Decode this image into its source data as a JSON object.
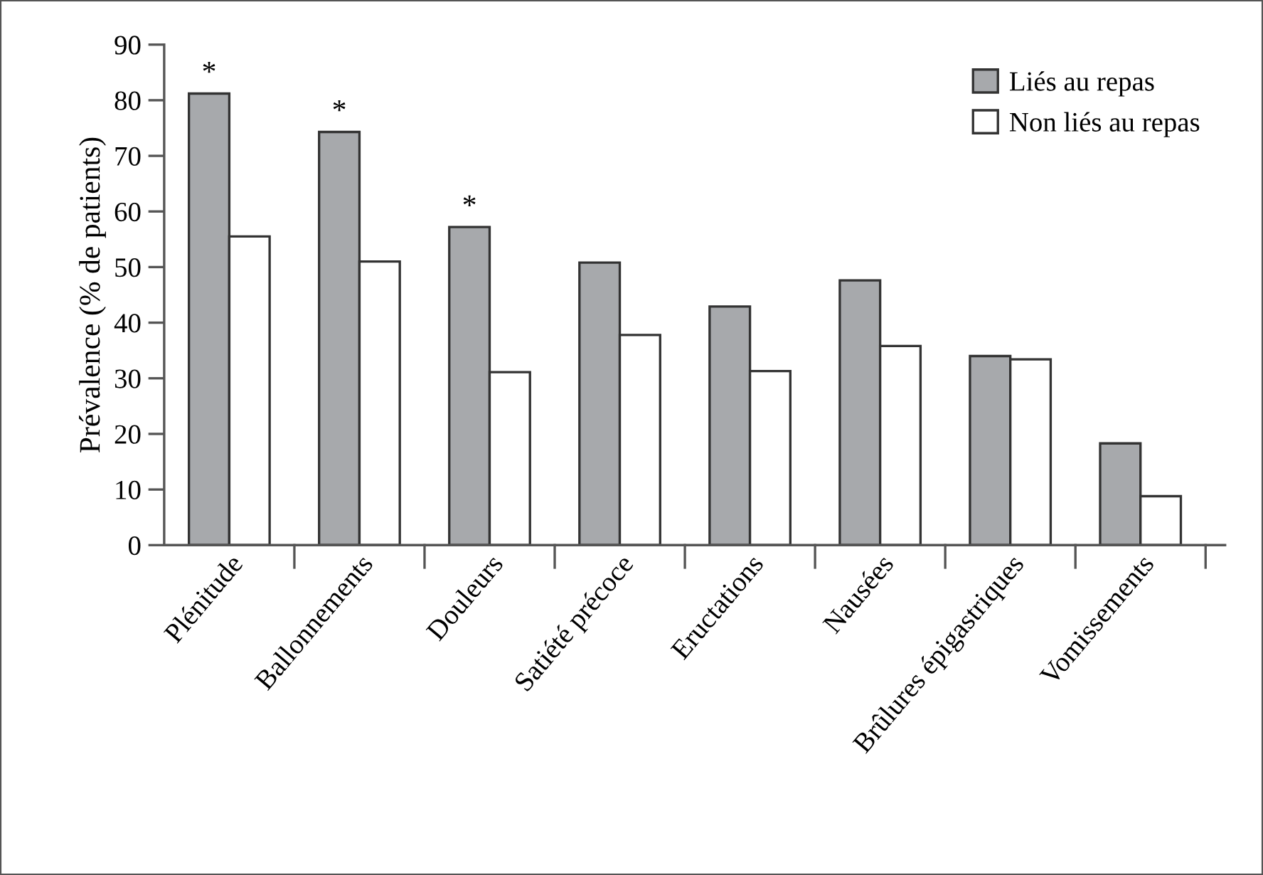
{
  "chart_data": {
    "type": "bar",
    "ylabel": "Prévalence (% de patients)",
    "categories": [
      "Plénitude",
      "Ballonnements",
      "Douleurs",
      "Satiété précoce",
      "Eructations",
      "Nausées",
      "Brûlures épigastriques",
      "Vomissements"
    ],
    "series": [
      {
        "name": "Liés au repas",
        "color": "#a7a9ac",
        "values": [
          81.2,
          74.3,
          57.2,
          50.8,
          42.9,
          47.6,
          34.0,
          18.3
        ]
      },
      {
        "name": "Non liés au repas",
        "color": "#ffffff",
        "values": [
          55.5,
          51.0,
          31.1,
          37.8,
          31.3,
          35.8,
          33.4,
          8.8
        ]
      }
    ],
    "ylim": [
      0,
      90
    ],
    "yticks": [
      0,
      10,
      20,
      30,
      40,
      50,
      60,
      70,
      80,
      90
    ],
    "annotations": [
      {
        "text": "*",
        "x": "Plénitude",
        "y": 81.2
      },
      {
        "text": "*",
        "x": "Ballonnements",
        "y": 74.3
      },
      {
        "text": "*",
        "x": "Douleurs",
        "y": 57.2
      }
    ],
    "grid": false,
    "legend": "top right"
  }
}
